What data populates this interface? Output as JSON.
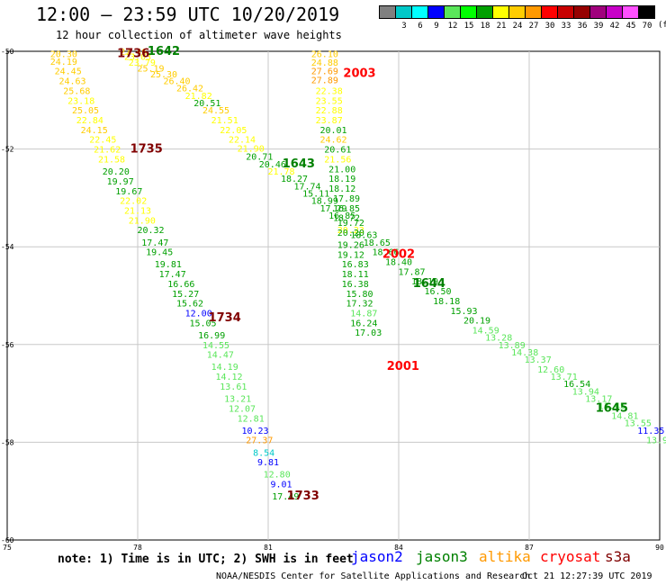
{
  "title": "12:00 – 23:59 UTC 10/20/2019",
  "subtitle": "12 hour collection of altimeter wave heights",
  "legend": {
    "unit": "(ft)",
    "items": [
      {
        "label": "",
        "color": "#808080"
      },
      {
        "label": "3",
        "color": "#00c8c8"
      },
      {
        "label": "6",
        "color": "#00ffff"
      },
      {
        "label": "9",
        "color": "#0000ff"
      },
      {
        "label": "12",
        "color": "#5ae65a"
      },
      {
        "label": "15",
        "color": "#00ff00"
      },
      {
        "label": "18",
        "color": "#00a000"
      },
      {
        "label": "21",
        "color": "#ffff00"
      },
      {
        "label": "24",
        "color": "#ffcc00"
      },
      {
        "label": "27",
        "color": "#ff9900"
      },
      {
        "label": "30",
        "color": "#ff0000"
      },
      {
        "label": "33",
        "color": "#c80000"
      },
      {
        "label": "36",
        "color": "#960000"
      },
      {
        "label": "39",
        "color": "#a0007d"
      },
      {
        "label": "42",
        "color": "#c800c8"
      },
      {
        "label": "45",
        "color": "#ff50ff"
      },
      {
        "label": "70",
        "color": "#000000"
      }
    ]
  },
  "axes": {
    "x_ticks": [
      {
        "lon": 75,
        "label": "75"
      },
      {
        "lon": 78,
        "label": "78"
      },
      {
        "lon": 81,
        "label": "81"
      },
      {
        "lon": 84,
        "label": "84"
      },
      {
        "lon": 87,
        "label": "87"
      },
      {
        "lon": 90,
        "label": "90"
      }
    ],
    "y_ticks": [
      {
        "lat": -50,
        "label": "-50"
      },
      {
        "lat": -52,
        "label": "-52"
      },
      {
        "lat": -54,
        "label": "-54"
      },
      {
        "lat": -56,
        "label": "-56"
      },
      {
        "lat": -58,
        "label": "-58"
      },
      {
        "lat": -60,
        "label": "-60"
      }
    ],
    "lon_range": [
      75,
      90
    ],
    "lat_range": [
      -60,
      -50
    ]
  },
  "passes": [
    {
      "time": "1736",
      "sat": "s3a",
      "color": "#800000",
      "lon": 77.9,
      "lat": -50.05
    },
    {
      "time": "1642",
      "sat": "jason3",
      "color": "#008000",
      "lon": 78.6,
      "lat": -50.0
    },
    {
      "time": "1735",
      "sat": "s3a",
      "color": "#800000",
      "lon": 78.2,
      "lat": -52.0
    },
    {
      "time": "2003",
      "sat": "cryosat",
      "color": "#ff0000",
      "lon": 83.1,
      "lat": -50.45
    },
    {
      "time": "1643",
      "sat": "jason3",
      "color": "#008000",
      "lon": 81.7,
      "lat": -52.3
    },
    {
      "time": "2002",
      "sat": "cryosat",
      "color": "#ff0000",
      "lon": 84.0,
      "lat": -54.15
    },
    {
      "time": "1644",
      "sat": "jason3",
      "color": "#008000",
      "lon": 84.7,
      "lat": -54.75
    },
    {
      "time": "1734",
      "sat": "s3a",
      "color": "#800000",
      "lon": 80.0,
      "lat": -55.45
    },
    {
      "time": "2001",
      "sat": "cryosat",
      "color": "#ff0000",
      "lon": 84.1,
      "lat": -56.45
    },
    {
      "time": "1645",
      "sat": "jason3",
      "color": "#008000",
      "lon": 88.9,
      "lat": -57.3
    },
    {
      "time": "1733",
      "sat": "s3a",
      "color": "#800000",
      "lon": 81.8,
      "lat": -59.1
    }
  ],
  "tracks": [
    {
      "name": "s3a-west",
      "points": [
        {
          "v": "20.30",
          "c": "#ffcc00",
          "lon": 76.3,
          "lat": -50.05
        },
        {
          "v": "24.19",
          "c": "#ffcc00",
          "lon": 76.3,
          "lat": -50.2
        },
        {
          "v": "24.45",
          "c": "#ffcc00",
          "lon": 76.4,
          "lat": -50.4
        },
        {
          "v": "24.63",
          "c": "#ffcc00",
          "lon": 76.5,
          "lat": -50.6
        },
        {
          "v": "25.68",
          "c": "#ffcc00",
          "lon": 76.6,
          "lat": -50.8
        },
        {
          "v": "23.18",
          "c": "#ffff00",
          "lon": 76.7,
          "lat": -51.0
        },
        {
          "v": "25.05",
          "c": "#ffcc00",
          "lon": 76.8,
          "lat": -51.2
        },
        {
          "v": "22.84",
          "c": "#ffff00",
          "lon": 76.9,
          "lat": -51.4
        },
        {
          "v": "24.15",
          "c": "#ffcc00",
          "lon": 77.0,
          "lat": -51.6
        },
        {
          "v": "22.45",
          "c": "#ffff00",
          "lon": 77.2,
          "lat": -51.8
        },
        {
          "v": "21.62",
          "c": "#ffff00",
          "lon": 77.3,
          "lat": -52.0
        },
        {
          "v": "21.58",
          "c": "#ffff00",
          "lon": 77.4,
          "lat": -52.2
        },
        {
          "v": "20.20",
          "c": "#00a000",
          "lon": 77.5,
          "lat": -52.45
        },
        {
          "v": "19.97",
          "c": "#00a000",
          "lon": 77.6,
          "lat": -52.65
        },
        {
          "v": "19.67",
          "c": "#00a000",
          "lon": 77.8,
          "lat": -52.85
        },
        {
          "v": "22.02",
          "c": "#ffff00",
          "lon": 77.9,
          "lat": -53.05
        },
        {
          "v": "21.13",
          "c": "#ffff00",
          "lon": 78.0,
          "lat": -53.25
        },
        {
          "v": "21.90",
          "c": "#ffff00",
          "lon": 78.1,
          "lat": -53.45
        },
        {
          "v": "20.32",
          "c": "#00a000",
          "lon": 78.3,
          "lat": -53.65
        },
        {
          "v": "17.47",
          "c": "#00a000",
          "lon": 78.4,
          "lat": -53.9
        },
        {
          "v": "19.45",
          "c": "#00a000",
          "lon": 78.5,
          "lat": -54.1
        },
        {
          "v": "19.81",
          "c": "#00a000",
          "lon": 78.7,
          "lat": -54.35
        },
        {
          "v": "17.47",
          "c": "#00a000",
          "lon": 78.8,
          "lat": -54.55
        },
        {
          "v": "16.66",
          "c": "#00a000",
          "lon": 79.0,
          "lat": -54.75
        },
        {
          "v": "15.27",
          "c": "#00a000",
          "lon": 79.1,
          "lat": -54.95
        },
        {
          "v": "15.62",
          "c": "#00a000",
          "lon": 79.2,
          "lat": -55.15
        },
        {
          "v": "12.00",
          "c": "#0000ff",
          "lon": 79.4,
          "lat": -55.35
        },
        {
          "v": "15.05",
          "c": "#00a000",
          "lon": 79.5,
          "lat": -55.55
        },
        {
          "v": "16.99",
          "c": "#00a000",
          "lon": 79.7,
          "lat": -55.8
        },
        {
          "v": "14.55",
          "c": "#5ae65a",
          "lon": 79.8,
          "lat": -56.0
        },
        {
          "v": "14.47",
          "c": "#5ae65a",
          "lon": 79.9,
          "lat": -56.2
        },
        {
          "v": "14.19",
          "c": "#5ae65a",
          "lon": 80.0,
          "lat": -56.45
        },
        {
          "v": "14.12",
          "c": "#5ae65a",
          "lon": 80.1,
          "lat": -56.65
        },
        {
          "v": "13.61",
          "c": "#5ae65a",
          "lon": 80.2,
          "lat": -56.85
        },
        {
          "v": "13.21",
          "c": "#5ae65a",
          "lon": 80.3,
          "lat": -57.1
        },
        {
          "v": "12.07",
          "c": "#5ae65a",
          "lon": 80.4,
          "lat": -57.3
        },
        {
          "v": "12.81",
          "c": "#5ae65a",
          "lon": 80.6,
          "lat": -57.5
        },
        {
          "v": "10.23",
          "c": "#0000ff",
          "lon": 80.7,
          "lat": -57.75
        },
        {
          "v": "27.37",
          "c": "#ff9900",
          "lon": 80.8,
          "lat": -57.95
        },
        {
          "v": "8.54",
          "c": "#00c8c8",
          "lon": 80.9,
          "lat": -58.2
        },
        {
          "v": "9.81",
          "c": "#0000ff",
          "lon": 81.0,
          "lat": -58.4
        },
        {
          "v": "12.80",
          "c": "#5ae65a",
          "lon": 81.2,
          "lat": -58.65
        },
        {
          "v": "9.01",
          "c": "#0000ff",
          "lon": 81.3,
          "lat": -58.85
        },
        {
          "v": "17.49",
          "c": "#00a000",
          "lon": 81.4,
          "lat": -59.1
        }
      ]
    },
    {
      "name": "jason3-west",
      "points": [
        {
          "v": "27.46",
          "c": "#ffcc00",
          "lon": 77.9,
          "lat": -50.0
        },
        {
          "v": "23.03",
          "c": "#ffff00",
          "lon": 78.0,
          "lat": -50.1
        },
        {
          "v": "23.79",
          "c": "#ffff00",
          "lon": 78.1,
          "lat": -50.22
        },
        {
          "v": "25.19",
          "c": "#ffcc00",
          "lon": 78.3,
          "lat": -50.34
        },
        {
          "v": "25.30",
          "c": "#ffcc00",
          "lon": 78.6,
          "lat": -50.46
        },
        {
          "v": "26.40",
          "c": "#ffcc00",
          "lon": 78.9,
          "lat": -50.6
        },
        {
          "v": "26.42",
          "c": "#ffcc00",
          "lon": 79.2,
          "lat": -50.75
        },
        {
          "v": "21.82",
          "c": "#ffff00",
          "lon": 79.4,
          "lat": -50.9
        },
        {
          "v": "20.51",
          "c": "#00a000",
          "lon": 79.6,
          "lat": -51.05
        },
        {
          "v": "24.55",
          "c": "#ffcc00",
          "lon": 79.8,
          "lat": -51.2
        },
        {
          "v": "21.51",
          "c": "#ffff00",
          "lon": 80.0,
          "lat": -51.4
        },
        {
          "v": "22.05",
          "c": "#ffff00",
          "lon": 80.2,
          "lat": -51.6
        },
        {
          "v": "22.14",
          "c": "#ffff00",
          "lon": 80.4,
          "lat": -51.8
        },
        {
          "v": "21.90",
          "c": "#ffff00",
          "lon": 80.6,
          "lat": -51.98
        },
        {
          "v": "20.71",
          "c": "#00a000",
          "lon": 80.8,
          "lat": -52.15
        },
        {
          "v": "20.46",
          "c": "#00a000",
          "lon": 81.1,
          "lat": -52.3
        },
        {
          "v": "21.78",
          "c": "#ffff00",
          "lon": 81.3,
          "lat": -52.45
        },
        {
          "v": "18.27",
          "c": "#00a000",
          "lon": 81.6,
          "lat": -52.6
        },
        {
          "v": "17.74",
          "c": "#00a000",
          "lon": 81.9,
          "lat": -52.75
        },
        {
          "v": "15.11",
          "c": "#00a000",
          "lon": 82.1,
          "lat": -52.9
        },
        {
          "v": "18.99",
          "c": "#00a000",
          "lon": 82.3,
          "lat": -53.05
        },
        {
          "v": "17.29",
          "c": "#00a000",
          "lon": 82.5,
          "lat": -53.2
        },
        {
          "v": "16.85",
          "c": "#00a000",
          "lon": 82.7,
          "lat": -53.35
        },
        {
          "v": "19.72",
          "c": "#00a000",
          "lon": 82.9,
          "lat": -53.5
        }
      ]
    },
    {
      "name": "jason3-east",
      "points": [
        {
          "v": "20.23",
          "c": "#ffff00",
          "lon": 82.9,
          "lat": -53.65
        },
        {
          "v": "18.63",
          "c": "#00a000",
          "lon": 83.2,
          "lat": -53.75
        },
        {
          "v": "18.65",
          "c": "#00a000",
          "lon": 83.5,
          "lat": -53.9
        },
        {
          "v": "18.66",
          "c": "#00a000",
          "lon": 83.7,
          "lat": -54.1
        },
        {
          "v": "18.40",
          "c": "#00a000",
          "lon": 84.0,
          "lat": -54.3
        },
        {
          "v": "17.87",
          "c": "#00a000",
          "lon": 84.3,
          "lat": -54.5
        },
        {
          "v": "18.19",
          "c": "#00a000",
          "lon": 84.6,
          "lat": -54.7
        },
        {
          "v": "16.50",
          "c": "#00a000",
          "lon": 84.9,
          "lat": -54.9
        },
        {
          "v": "18.18",
          "c": "#00a000",
          "lon": 85.1,
          "lat": -55.1
        },
        {
          "v": "15.93",
          "c": "#00a000",
          "lon": 85.5,
          "lat": -55.3
        },
        {
          "v": "20.19",
          "c": "#00a000",
          "lon": 85.8,
          "lat": -55.5
        },
        {
          "v": "14.59",
          "c": "#5ae65a",
          "lon": 86.0,
          "lat": -55.7
        },
        {
          "v": "13.28",
          "c": "#5ae65a",
          "lon": 86.3,
          "lat": -55.85
        },
        {
          "v": "13.89",
          "c": "#5ae65a",
          "lon": 86.6,
          "lat": -56.0
        },
        {
          "v": "14.38",
          "c": "#5ae65a",
          "lon": 86.9,
          "lat": -56.15
        },
        {
          "v": "13.37",
          "c": "#5ae65a",
          "lon": 87.2,
          "lat": -56.3
        },
        {
          "v": "12.60",
          "c": "#5ae65a",
          "lon": 87.5,
          "lat": -56.5
        },
        {
          "v": "13.71",
          "c": "#5ae65a",
          "lon": 87.8,
          "lat": -56.65
        },
        {
          "v": "16.54",
          "c": "#00a000",
          "lon": 88.1,
          "lat": -56.8
        },
        {
          "v": "13.94",
          "c": "#5ae65a",
          "lon": 88.3,
          "lat": -56.95
        },
        {
          "v": "13.17",
          "c": "#5ae65a",
          "lon": 88.6,
          "lat": -57.1
        },
        {
          "v": "13.45",
          "c": "#5ae65a",
          "lon": 88.9,
          "lat": -57.25
        },
        {
          "v": "14.81",
          "c": "#5ae65a",
          "lon": 89.2,
          "lat": -57.45
        },
        {
          "v": "13.55",
          "c": "#5ae65a",
          "lon": 89.5,
          "lat": -57.6
        },
        {
          "v": "11.35",
          "c": "#0000ff",
          "lon": 89.8,
          "lat": -57.75
        },
        {
          "v": "13.93",
          "c": "#5ae65a",
          "lon": 90.0,
          "lat": -57.95
        }
      ]
    },
    {
      "name": "cryosat",
      "points": [
        {
          "v": "26.10",
          "c": "#ffcc00",
          "lon": 82.3,
          "lat": -50.05
        },
        {
          "v": "24.88",
          "c": "#ffcc00",
          "lon": 82.3,
          "lat": -50.22
        },
        {
          "v": "27.69",
          "c": "#ff9900",
          "lon": 82.3,
          "lat": -50.4
        },
        {
          "v": "27.89",
          "c": "#ff9900",
          "lon": 82.3,
          "lat": -50.58
        },
        {
          "v": "22.38",
          "c": "#ffff00",
          "lon": 82.4,
          "lat": -50.8
        },
        {
          "v": "23.55",
          "c": "#ffff00",
          "lon": 82.4,
          "lat": -51.0
        },
        {
          "v": "22.88",
          "c": "#ffff00",
          "lon": 82.4,
          "lat": -51.2
        },
        {
          "v": "23.87",
          "c": "#ffff00",
          "lon": 82.4,
          "lat": -51.4
        },
        {
          "v": "20.01",
          "c": "#00a000",
          "lon": 82.5,
          "lat": -51.6
        },
        {
          "v": "24.62",
          "c": "#ffcc00",
          "lon": 82.5,
          "lat": -51.8
        },
        {
          "v": "20.61",
          "c": "#00a000",
          "lon": 82.6,
          "lat": -52.0
        },
        {
          "v": "21.56",
          "c": "#ffff00",
          "lon": 82.6,
          "lat": -52.2
        },
        {
          "v": "21.00",
          "c": "#00a000",
          "lon": 82.7,
          "lat": -52.4
        },
        {
          "v": "18.19",
          "c": "#00a000",
          "lon": 82.7,
          "lat": -52.6
        },
        {
          "v": "18.12",
          "c": "#00a000",
          "lon": 82.7,
          "lat": -52.8
        },
        {
          "v": "17.89",
          "c": "#00a000",
          "lon": 82.8,
          "lat": -53.0
        },
        {
          "v": "16.85",
          "c": "#00a000",
          "lon": 82.8,
          "lat": -53.2
        },
        {
          "v": "18.72",
          "c": "#00a000",
          "lon": 82.8,
          "lat": -53.4
        },
        {
          "v": "20.20",
          "c": "#00a000",
          "lon": 82.9,
          "lat": -53.7
        },
        {
          "v": "19.26",
          "c": "#00a000",
          "lon": 82.9,
          "lat": -53.95
        },
        {
          "v": "19.12",
          "c": "#00a000",
          "lon": 82.9,
          "lat": -54.15
        },
        {
          "v": "16.83",
          "c": "#00a000",
          "lon": 83.0,
          "lat": -54.35
        },
        {
          "v": "18.11",
          "c": "#00a000",
          "lon": 83.0,
          "lat": -54.55
        },
        {
          "v": "16.38",
          "c": "#00a000",
          "lon": 83.0,
          "lat": -54.75
        },
        {
          "v": "15.80",
          "c": "#00a000",
          "lon": 83.1,
          "lat": -54.95
        },
        {
          "v": "17.32",
          "c": "#00a000",
          "lon": 83.1,
          "lat": -55.15
        },
        {
          "v": "14.87",
          "c": "#5ae65a",
          "lon": 83.2,
          "lat": -55.35
        },
        {
          "v": "16.24",
          "c": "#00a000",
          "lon": 83.2,
          "lat": -55.55
        },
        {
          "v": "17.03",
          "c": "#00a000",
          "lon": 83.3,
          "lat": -55.75
        }
      ]
    }
  ],
  "footer": {
    "note": "note: 1) Time is in UTC; 2) SWH is in feet",
    "satellites": [
      {
        "name": "jason2",
        "color": "#0000ff"
      },
      {
        "name": "jason3",
        "color": "#008000"
      },
      {
        "name": "altika",
        "color": "#ff9900"
      },
      {
        "name": "cryosat",
        "color": "#ff0000"
      },
      {
        "name": "s3a",
        "color": "#800000"
      }
    ],
    "credit": "NOAA/NESDIS Center for Satellite Applications and Research",
    "stamp": "Oct 21 12:27:39 UTC 2019"
  }
}
